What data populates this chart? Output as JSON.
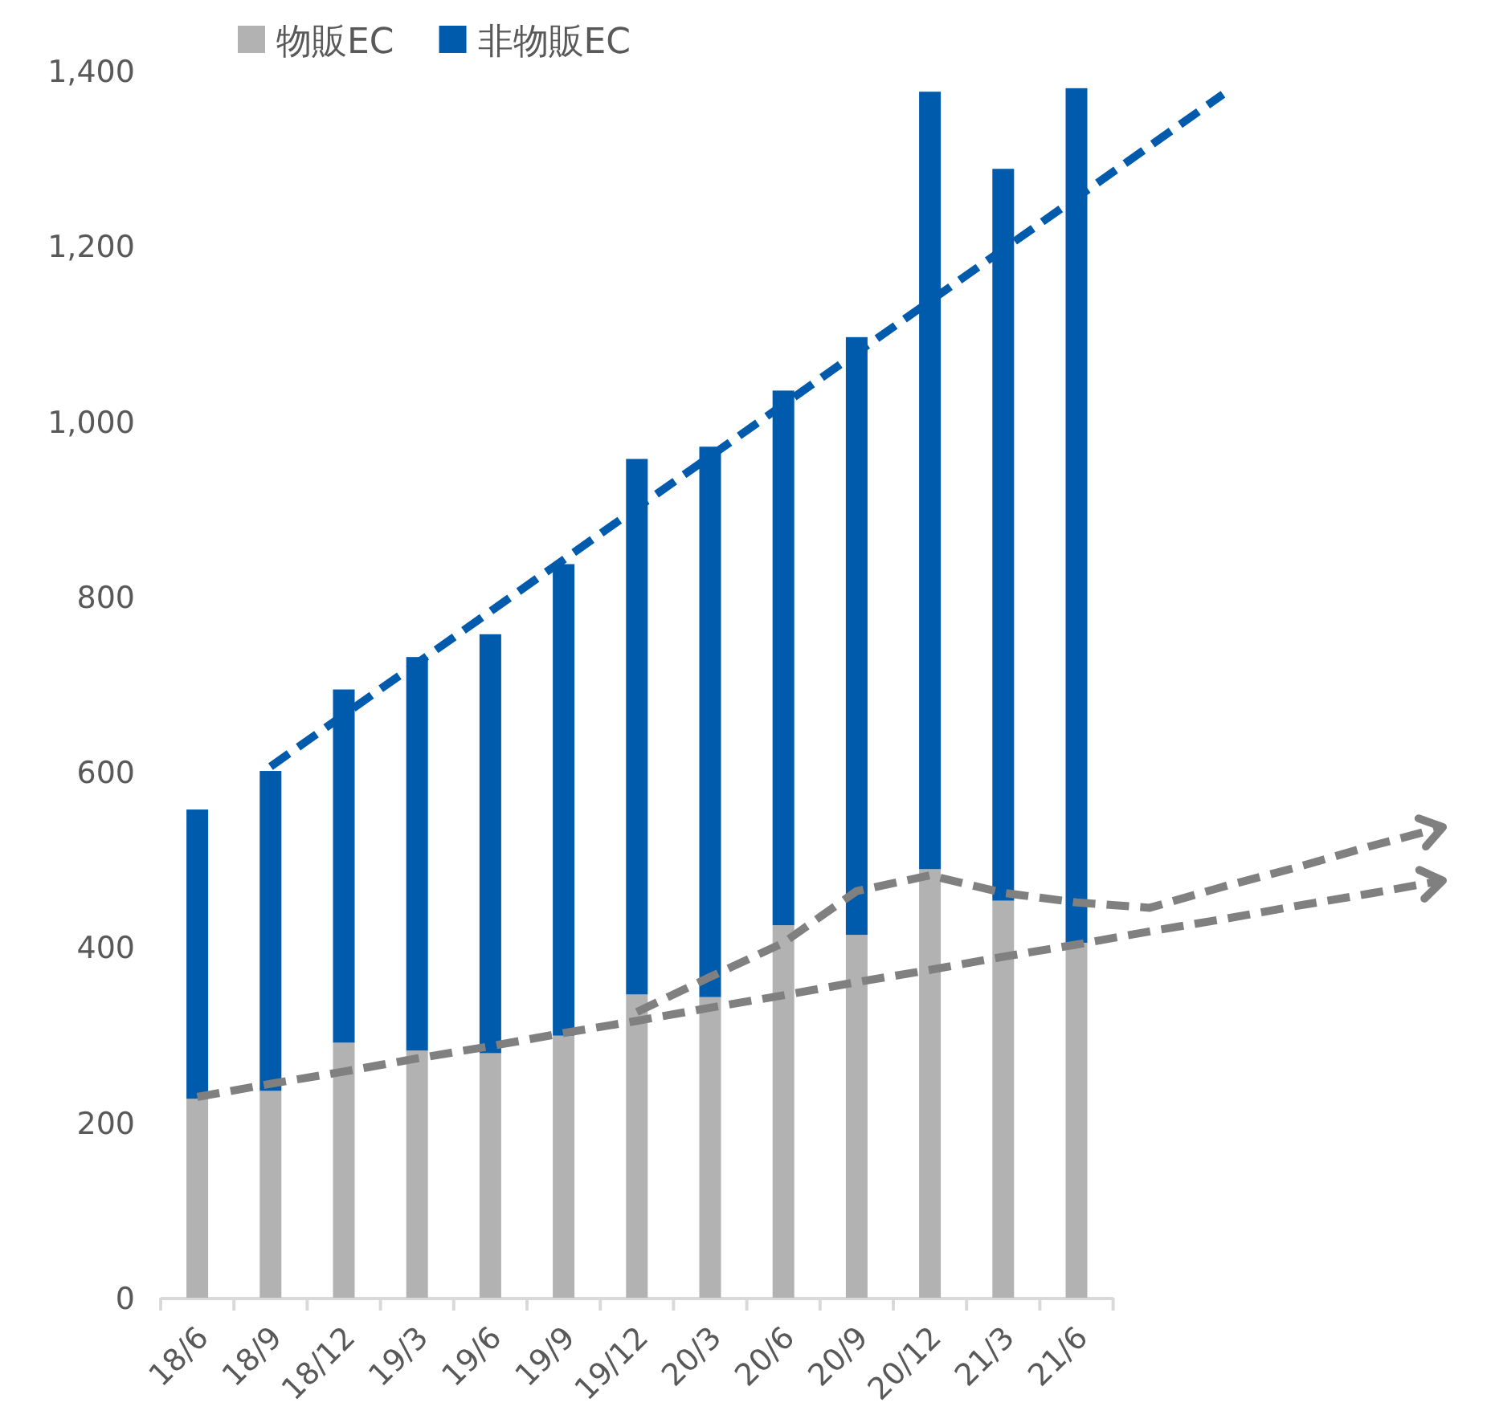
{
  "chart_data": {
    "type": "bar",
    "stacked": true,
    "legend": "top",
    "ylim": [
      0,
      1400
    ],
    "yticks": [
      0,
      {
        "value": 200,
        "label": "200"
      },
      {
        "value": 400,
        "label": "400"
      },
      {
        "value": 600,
        "label": "600"
      },
      {
        "value": 800,
        "label": "800"
      },
      {
        "value": 1000,
        "label": "1,000"
      },
      {
        "value": 1200,
        "label": "1,200"
      },
      {
        "value": 1400,
        "label": "1,400"
      }
    ],
    "categories": [
      "18/6",
      "18/9",
      "18/12",
      "19/3",
      "19/6",
      "19/9",
      "19/12",
      "20/3",
      "20/6",
      "20/9",
      "20/12",
      "21/3",
      "21/6",
      null,
      null,
      null,
      null,
      null
    ],
    "series": [
      {
        "name": "物販EC",
        "color": "#b2b2b2",
        "values": [
          227,
          236,
          291,
          282,
          279,
          299,
          346,
          343,
          425,
          414,
          489,
          453,
          405,
          null,
          null,
          null,
          null,
          null
        ]
      },
      {
        "name": "非物販EC",
        "color": "#005bac",
        "values": [
          330,
          365,
          403,
          449,
          478,
          538,
          611,
          628,
          610,
          682,
          887,
          835,
          975,
          null,
          null,
          null,
          null,
          null
        ]
      },
      {
        "type": "line",
        "line_style": "dashed",
        "color": "#005bac",
        "values": [
          null,
          606,
          665,
          724,
          783,
          842,
          901,
          960,
          1019,
          1078,
          1137,
          1196,
          1255,
          1314,
          1373,
          null,
          null,
          null
        ]
      },
      {
        "type": "line",
        "line_style": "dashed",
        "color": "#808080",
        "values": [
          229,
          244,
          258,
          273,
          287,
          302,
          316,
          331,
          345,
          360,
          374,
          389,
          403,
          418,
          432,
          447,
          461,
          476
        ]
      },
      {
        "type": "line",
        "line_style": "dashed",
        "color": "#808080",
        "values": [
          null,
          null,
          null,
          null,
          null,
          null,
          326,
          366,
          405,
          464,
          482,
          462,
          451,
          445,
          469,
          491,
          515,
          537
        ]
      }
    ]
  }
}
